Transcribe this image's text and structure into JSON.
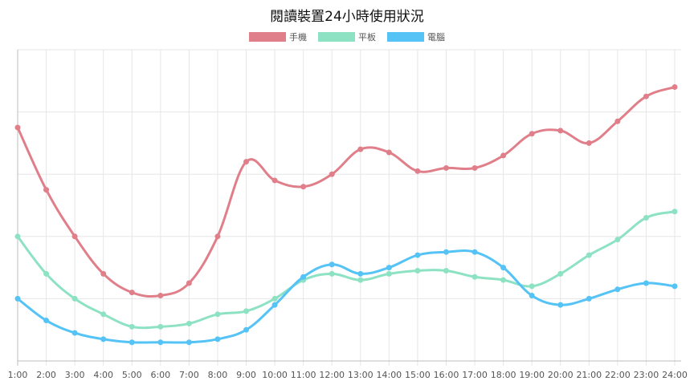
{
  "chart_data": {
    "type": "line",
    "title": "閱讀裝置24小時使用狀況",
    "categories": [
      "1:00",
      "2:00",
      "3:00",
      "4:00",
      "5:00",
      "6:00",
      "7:00",
      "8:00",
      "9:00",
      "10:00",
      "11:00",
      "12:00",
      "13:00",
      "14:00",
      "15:00",
      "16:00",
      "17:00",
      "18:00",
      "19:00",
      "20:00",
      "21:00",
      "22:00",
      "23:00",
      "24:00"
    ],
    "series": [
      {
        "name": "手機",
        "color": "#e07f8a",
        "values": [
          75,
          55,
          40,
          28,
          22,
          21,
          25,
          40,
          64,
          58,
          56,
          60,
          68,
          67,
          61,
          62,
          62,
          66,
          73,
          74,
          70,
          77,
          85,
          88
        ]
      },
      {
        "name": "平板",
        "color": "#8de2c3",
        "values": [
          40,
          28,
          20,
          15,
          11,
          11,
          12,
          15,
          16,
          20,
          26,
          28,
          26,
          28,
          29,
          29,
          27,
          26,
          24,
          28,
          34,
          39,
          46,
          48
        ]
      },
      {
        "name": "電腦",
        "color": "#55c3f5",
        "values": [
          20,
          13,
          9,
          7,
          6,
          6,
          6,
          7,
          10,
          18,
          27,
          31,
          28,
          30,
          34,
          35,
          35,
          30,
          21,
          18,
          20,
          23,
          25,
          24
        ]
      }
    ],
    "ylim": [
      0,
      100
    ],
    "y_gridlines": [
      0,
      20,
      40,
      60,
      80,
      100
    ],
    "y_tick_labels_shown": false,
    "grid": true,
    "legend": "top-center",
    "xlabel": "",
    "ylabel": ""
  }
}
